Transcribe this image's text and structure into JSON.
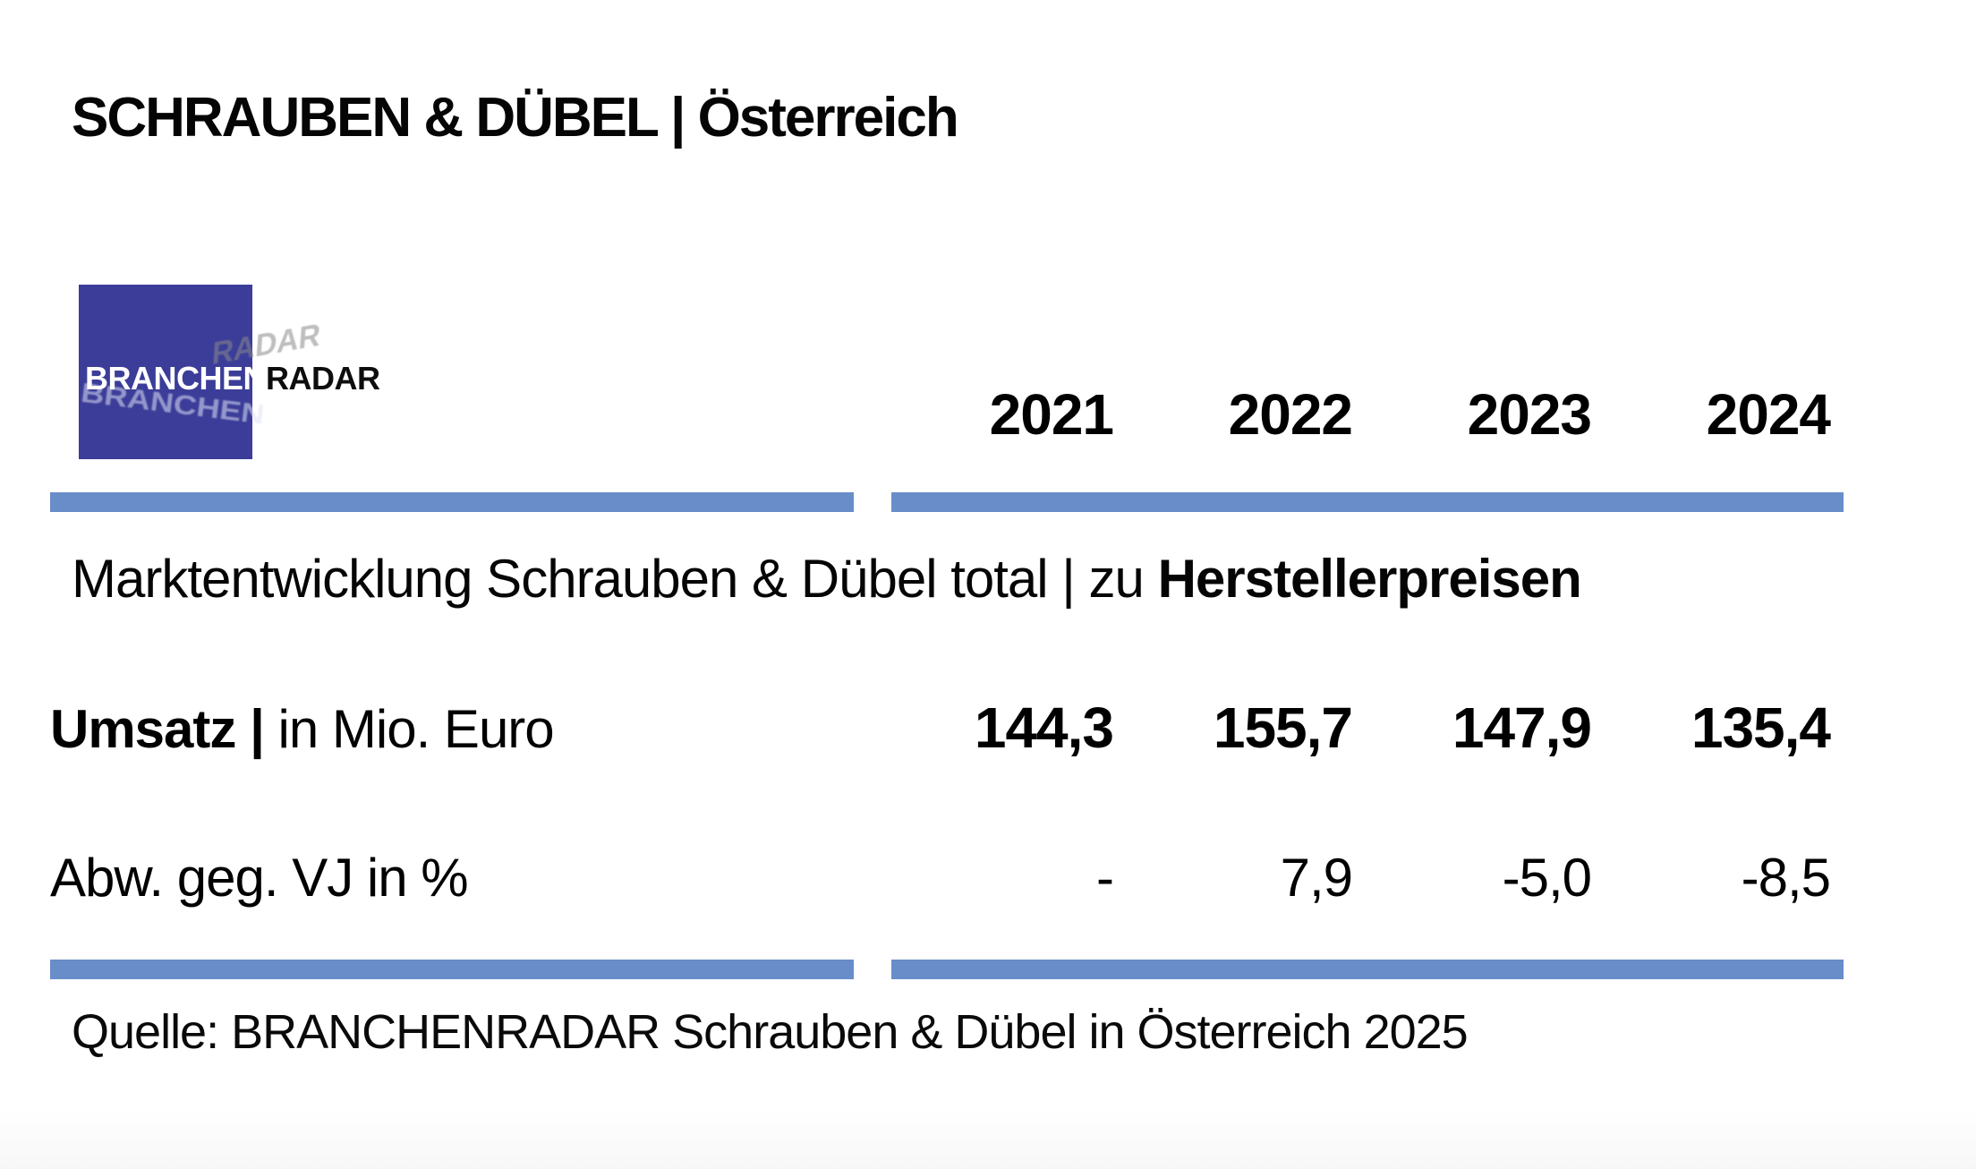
{
  "page": {
    "title": "SCHRAUBEN & DÜBEL | Österreich"
  },
  "logo": {
    "part1": "BRANCHEN",
    "part2": "RADAR",
    "ghost_top": "RADAR",
    "ghost_bottom": "BRANCHEN"
  },
  "table": {
    "years": [
      "2021",
      "2022",
      "2023",
      "2024"
    ],
    "section_title": {
      "regular": "Marktentwicklung Schrauben & Dübel total | zu ",
      "bold": "Herstellerpreisen"
    },
    "rows": [
      {
        "label_bold": "Umsatz | ",
        "label_regular": "in Mio. Euro",
        "values": [
          "144,3",
          "155,7",
          "147,9",
          "135,4"
        ]
      },
      {
        "label_bold": "",
        "label_regular": "Abw. geg. VJ in %",
        "values": [
          "-",
          "7,9",
          "-5,0",
          "-8,5"
        ]
      }
    ]
  },
  "source": {
    "text": "Quelle: BRANCHENRADAR Schrauben & Dübel in Österreich 2025"
  },
  "colors": {
    "rule_blue": "#688DC9",
    "logo_blue": "#3B3D99",
    "text_black": "#050505"
  },
  "chart_data": {
    "type": "table",
    "title": "Marktentwicklung Schrauben & Dübel total | zu Herstellerpreisen",
    "categories": [
      "2021",
      "2022",
      "2023",
      "2024"
    ],
    "series": [
      {
        "name": "Umsatz | in Mio. Euro",
        "values": [
          144.3,
          155.7,
          147.9,
          135.4
        ]
      },
      {
        "name": "Abw. geg. VJ in %",
        "values": [
          null,
          7.9,
          -5.0,
          -8.5
        ]
      }
    ],
    "source": "Quelle: BRANCHENRADAR Schrauben & Dübel in Österreich 2025"
  }
}
